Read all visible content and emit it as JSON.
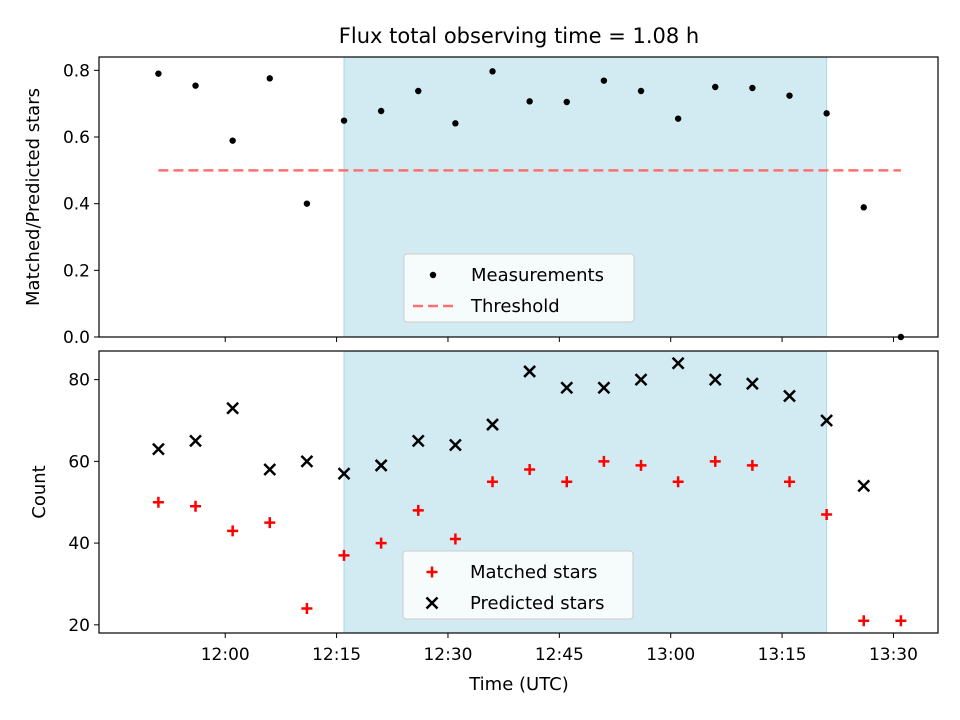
{
  "chart_data": [
    {
      "type": "scatter",
      "title": "Flux total observing time = 1.08 h",
      "ylabel": "Matched/Predicted stars",
      "xlabel": "",
      "ylim": [
        0,
        0.84
      ],
      "yticks": [
        "0.0",
        "0.2",
        "0.4",
        "0.6",
        "0.8"
      ],
      "grid": false,
      "legend_position": "lower center",
      "shaded_x_range": [
        "12:16",
        "13:21"
      ],
      "shade_color": "#add8e6",
      "series": [
        {
          "name": "Measurements",
          "marker": "dot",
          "color": "#000000",
          "x": [
            "11:51",
            "11:56",
            "12:01",
            "12:06",
            "12:11",
            "12:16",
            "12:21",
            "12:26",
            "12:31",
            "12:36",
            "12:41",
            "12:46",
            "12:51",
            "12:56",
            "13:01",
            "13:06",
            "13:11",
            "13:16",
            "13:21",
            "13:26",
            "13:31"
          ],
          "values": [
            0.79,
            0.754,
            0.589,
            0.776,
            0.4,
            0.649,
            0.678,
            0.738,
            0.641,
            0.797,
            0.707,
            0.705,
            0.769,
            0.738,
            0.655,
            0.75,
            0.747,
            0.724,
            0.671,
            0.389,
            0.0
          ]
        },
        {
          "name": "Threshold",
          "style": "dashed",
          "color": "#ff7070",
          "x": [
            "11:51",
            "13:31"
          ],
          "values": [
            0.5,
            0.5
          ]
        }
      ]
    },
    {
      "type": "scatter",
      "title": "",
      "xlabel": "Time (UTC)",
      "ylabel": "Count",
      "ylim": [
        18,
        87
      ],
      "yticks": [
        "20",
        "40",
        "60",
        "80"
      ],
      "xticks": [
        "12:00",
        "12:15",
        "12:30",
        "12:45",
        "13:00",
        "13:15",
        "13:30"
      ],
      "xlim": [
        "11:43",
        "13:36"
      ],
      "grid": false,
      "legend_position": "lower center",
      "shaded_x_range": [
        "12:16",
        "13:21"
      ],
      "shade_color": "#add8e6",
      "series": [
        {
          "name": "Matched stars",
          "marker": "plus",
          "color": "#ff0000",
          "x": [
            "11:51",
            "11:56",
            "12:01",
            "12:06",
            "12:11",
            "12:16",
            "12:21",
            "12:26",
            "12:31",
            "12:36",
            "12:41",
            "12:46",
            "12:51",
            "12:56",
            "13:01",
            "13:06",
            "13:11",
            "13:16",
            "13:21",
            "13:26",
            "13:31"
          ],
          "values": [
            50,
            49,
            43,
            45,
            24,
            37,
            40,
            48,
            41,
            55,
            58,
            55,
            60,
            59,
            55,
            60,
            59,
            55,
            47,
            21,
            21
          ]
        },
        {
          "name": "Predicted stars",
          "marker": "x",
          "color": "#000000",
          "x": [
            "11:51",
            "11:56",
            "12:01",
            "12:06",
            "12:11",
            "12:16",
            "12:21",
            "12:26",
            "12:31",
            "12:36",
            "12:41",
            "12:46",
            "12:51",
            "12:56",
            "13:01",
            "13:06",
            "13:11",
            "13:16",
            "13:21",
            "13:26"
          ],
          "values": [
            63,
            65,
            73,
            58,
            60,
            57,
            59,
            65,
            64,
            69,
            82,
            78,
            78,
            80,
            84,
            80,
            79,
            76,
            70,
            54
          ]
        }
      ]
    }
  ]
}
